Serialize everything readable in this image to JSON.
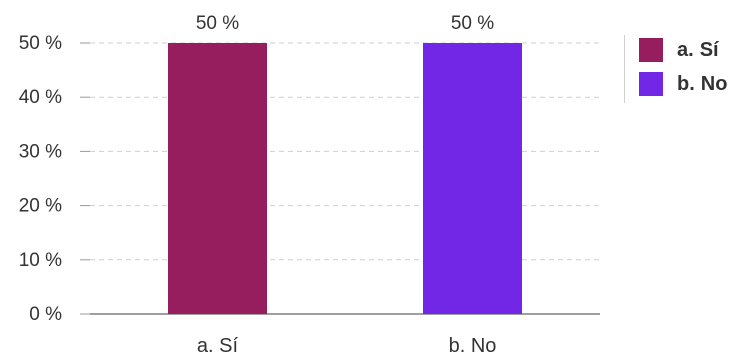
{
  "chart_data": {
    "type": "bar",
    "categories": [
      "a. Sí",
      "b. No"
    ],
    "values": [
      50,
      50
    ],
    "data_labels": [
      "50 %",
      "50 %"
    ],
    "colors": [
      "#961d5e",
      "#7327e6"
    ],
    "ylim": [
      0,
      50
    ],
    "yticks": [
      "0 %",
      "10 %",
      "20 %",
      "30 %",
      "40 %",
      "50 %"
    ],
    "grid": true,
    "legend_position": "right",
    "legend": [
      {
        "key": "a.",
        "label": "Sí",
        "color": "#961d5e"
      },
      {
        "key": "b.",
        "label": "No",
        "color": "#7327e6"
      }
    ]
  }
}
